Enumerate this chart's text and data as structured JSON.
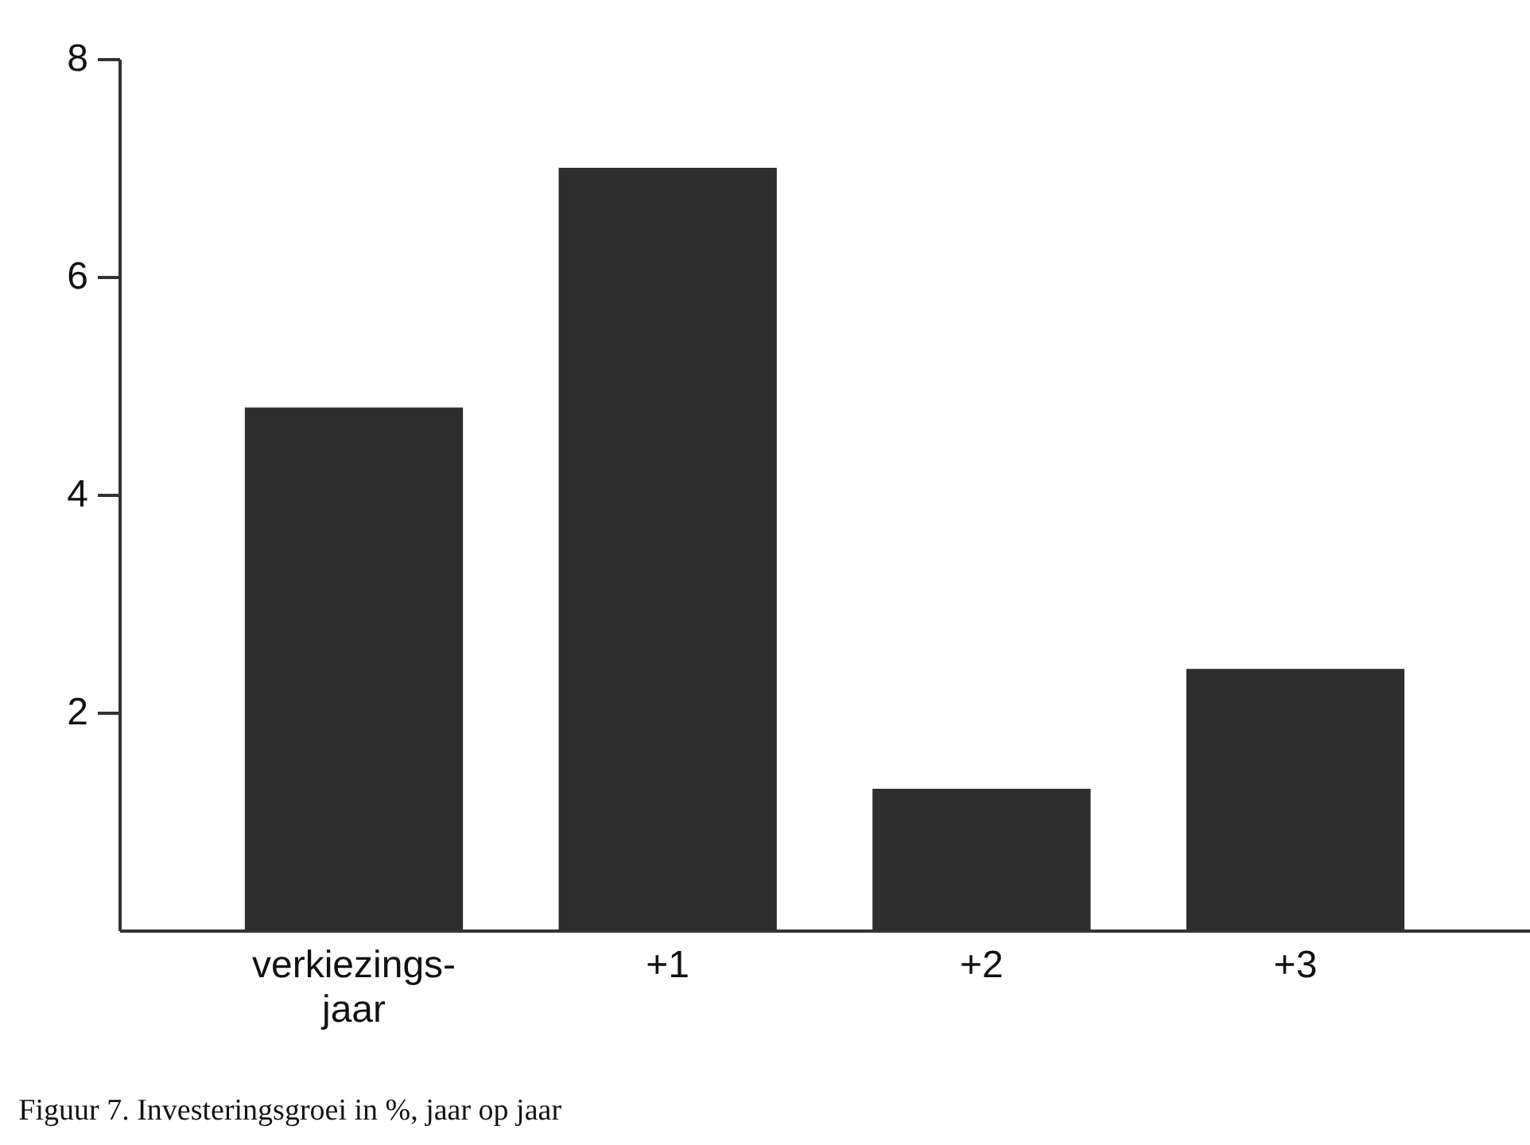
{
  "chart_data": {
    "type": "bar",
    "categories": [
      "verkiezings-\njaar",
      "+1",
      "+2",
      "+3"
    ],
    "values": [
      4.8,
      7.0,
      1.3,
      2.4
    ],
    "color": "#2e2e2e",
    "ylim": [
      0,
      8
    ],
    "yticks": [
      2,
      4,
      6,
      8
    ],
    "grid": false,
    "annotations": [
      "Figuur 7. Investeringsgroei in %, jaar op jaar"
    ]
  }
}
